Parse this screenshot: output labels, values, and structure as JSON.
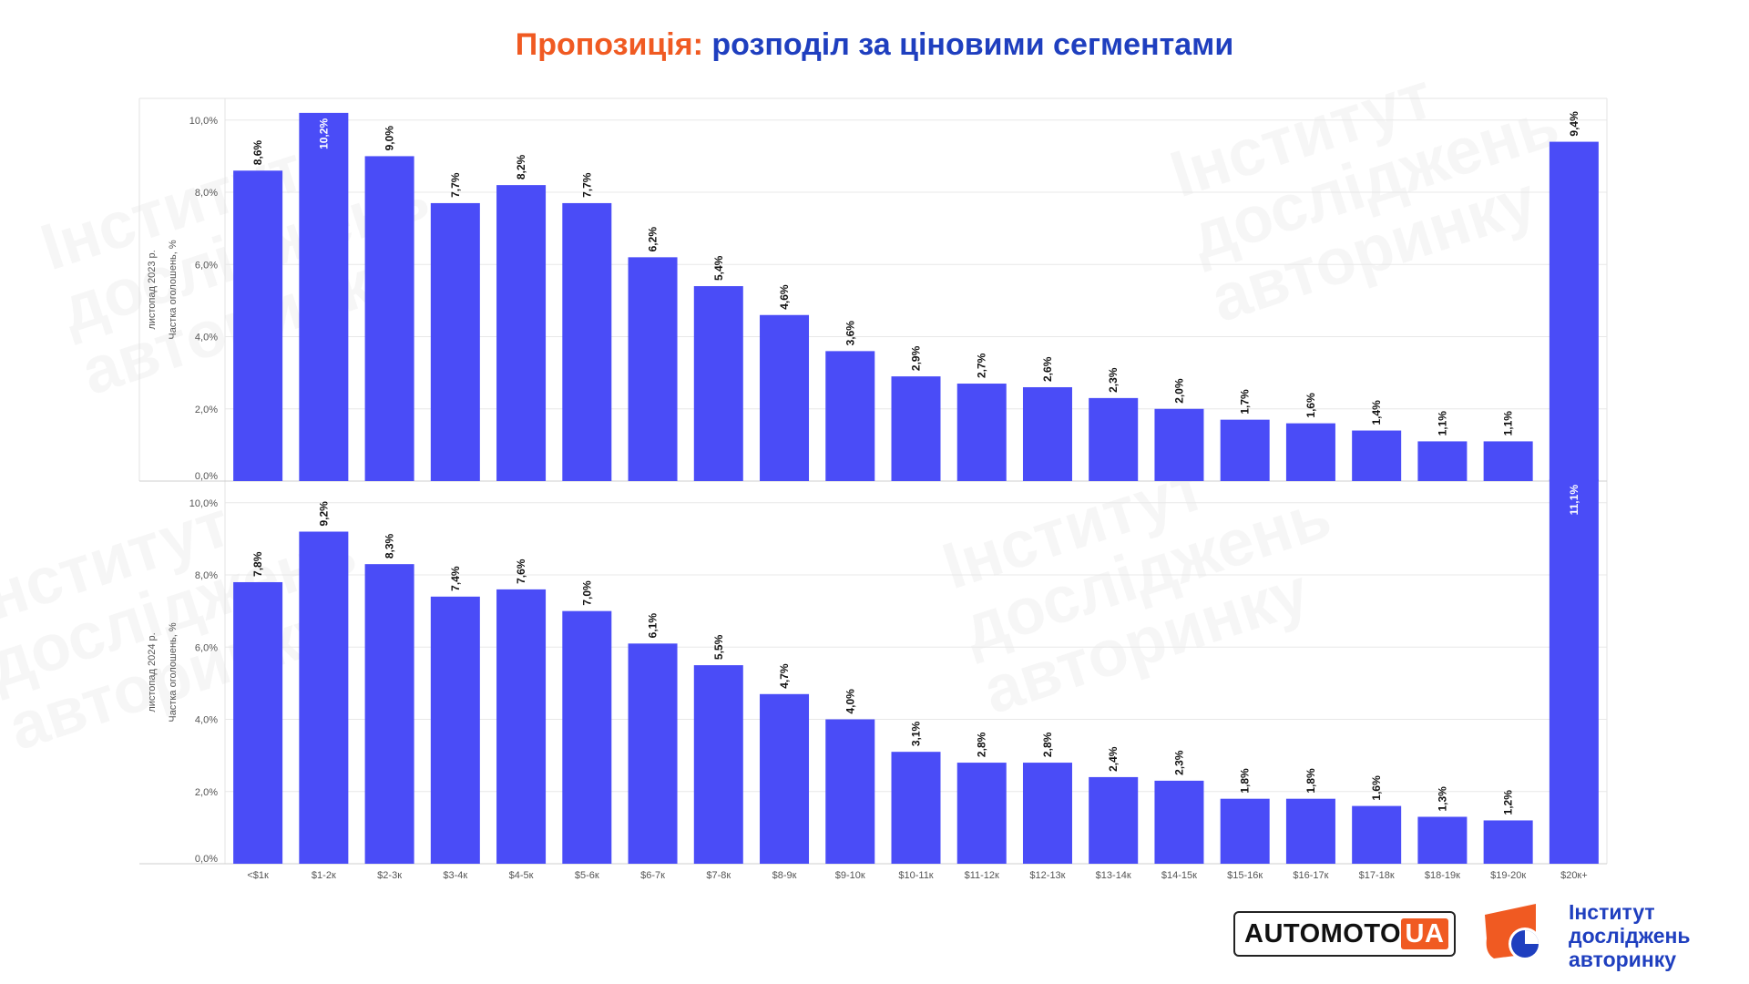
{
  "title": {
    "part1": "Пропозиція:",
    "part2": "розподіл за ціновими сегментами"
  },
  "colors": {
    "bar": "#4a4cf7",
    "accent": "#f05a22",
    "brand_blue": "#1f3fbf",
    "grid": "#e8e8e8",
    "text": "#555555"
  },
  "watermark": {
    "line1": "Інститут",
    "line2": "досліджень",
    "line3": "авторинку"
  },
  "chart_data": [
    {
      "type": "bar",
      "title": "",
      "xlabel": "",
      "ylabel": "Частка оголошень, %",
      "period_label": "листопад 2023 р.",
      "ylim": [
        0,
        10.5
      ],
      "yticks": [
        0,
        2,
        4,
        6,
        8,
        10
      ],
      "ytick_labels": [
        "0,0%",
        "2,0%",
        "4,0%",
        "6,0%",
        "8,0%",
        "10,0%"
      ],
      "categories": [
        "<$1к",
        "$1-2к",
        "$2-3к",
        "$3-4к",
        "$4-5к",
        "$5-6к",
        "$6-7к",
        "$7-8к",
        "$8-9к",
        "$9-10к",
        "$10-11к",
        "$11-12к",
        "$12-13к",
        "$13-14к",
        "$14-15к",
        "$15-16к",
        "$16-17к",
        "$17-18к",
        "$18-19к",
        "$19-20к",
        "$20к+"
      ],
      "values": [
        8.6,
        10.2,
        9.0,
        7.7,
        8.2,
        7.7,
        6.2,
        5.4,
        4.6,
        3.6,
        2.9,
        2.7,
        2.6,
        2.3,
        2.0,
        1.7,
        1.6,
        1.4,
        1.1,
        1.1,
        9.4
      ],
      "value_labels": [
        "8,6%",
        "10,2%",
        "9,0%",
        "7,7%",
        "8,2%",
        "7,7%",
        "6,2%",
        "5,4%",
        "4,6%",
        "3,6%",
        "2,9%",
        "2,7%",
        "2,6%",
        "2,3%",
        "2,0%",
        "1,7%",
        "1,6%",
        "1,4%",
        "1,1%",
        "1,1%",
        "9,4%"
      ],
      "show_xticks": false
    },
    {
      "type": "bar",
      "title": "",
      "xlabel": "",
      "ylabel": "Частка оголошень, %",
      "period_label": "листопад 2024 р.",
      "ylim": [
        0,
        10.5
      ],
      "yticks": [
        0,
        2,
        4,
        6,
        8,
        10
      ],
      "ytick_labels": [
        "0,0%",
        "2,0%",
        "4,0%",
        "6,0%",
        "8,0%",
        "10,0%"
      ],
      "categories": [
        "<$1к",
        "$1-2к",
        "$2-3к",
        "$3-4к",
        "$4-5к",
        "$5-6к",
        "$6-7к",
        "$7-8к",
        "$8-9к",
        "$9-10к",
        "$10-11к",
        "$11-12к",
        "$12-13к",
        "$13-14к",
        "$14-15к",
        "$15-16к",
        "$16-17к",
        "$17-18к",
        "$18-19к",
        "$19-20к",
        "$20к+"
      ],
      "values": [
        7.8,
        9.2,
        8.3,
        7.4,
        7.6,
        7.0,
        6.1,
        5.5,
        4.7,
        4.0,
        3.1,
        2.8,
        2.8,
        2.4,
        2.3,
        1.8,
        1.8,
        1.6,
        1.3,
        1.2,
        11.1
      ],
      "value_labels": [
        "7,8%",
        "9,2%",
        "8,3%",
        "7,4%",
        "7,6%",
        "7,0%",
        "6,1%",
        "5,5%",
        "4,7%",
        "4,0%",
        "3,1%",
        "2,8%",
        "2,8%",
        "2,4%",
        "2,3%",
        "1,8%",
        "1,8%",
        "1,6%",
        "1,3%",
        "1,2%",
        "11,1%"
      ],
      "show_xticks": true
    }
  ],
  "logos": {
    "automoto": {
      "main": "AUTOMOTO",
      "suffix": "UA"
    },
    "institute": {
      "line1": "Інститут",
      "line2": "досліджень",
      "line3": "авторинку"
    }
  }
}
